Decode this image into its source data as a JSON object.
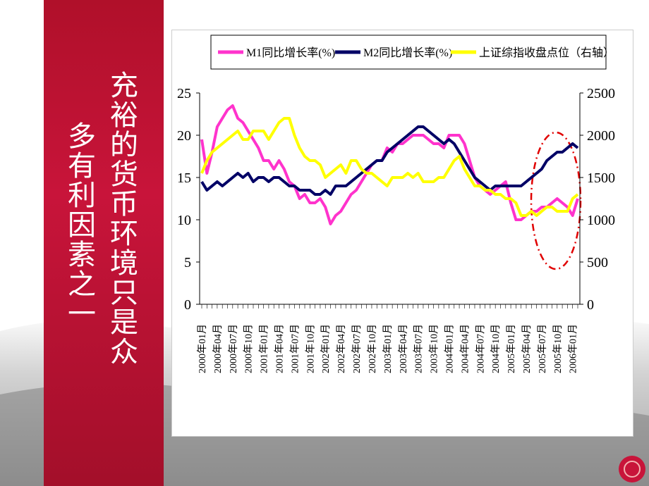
{
  "slide": {
    "heading_lines": [
      "充裕的货币环境只是众",
      "多有利因素之一"
    ]
  },
  "chart_data": {
    "type": "line",
    "categories": [
      "2000年01月",
      null,
      null,
      "2000年04月",
      null,
      null,
      "2000年07月",
      null,
      null,
      "2000年10月",
      null,
      null,
      "2001年01月",
      null,
      null,
      "2001年04月",
      null,
      null,
      "2001年07月",
      null,
      null,
      "2001年10月",
      null,
      null,
      "2002年01月",
      null,
      null,
      "2002年04月",
      null,
      null,
      "2002年07月",
      null,
      null,
      "2002年10月",
      null,
      null,
      "2003年01月",
      null,
      null,
      "2003年04月",
      null,
      null,
      "2003年07月",
      null,
      null,
      "2003年10月",
      null,
      null,
      "2004年01月",
      null,
      null,
      "2004年04月",
      null,
      null,
      "2004年07月",
      null,
      null,
      "2004年10月",
      null,
      null,
      "2005年01月",
      null,
      null,
      "2005年04月",
      null,
      null,
      "2005年07月",
      null,
      null,
      "2005年10月",
      null,
      null,
      "2006年01月",
      null
    ],
    "series": [
      {
        "name": "M1同比增长率(%)",
        "color": "#ff33cc",
        "values": [
          19.5,
          15.5,
          18,
          21,
          22,
          23,
          23.5,
          22,
          21.5,
          20.5,
          19.5,
          18.5,
          17,
          17,
          16,
          17,
          16,
          14.5,
          14,
          12.5,
          13,
          12,
          12,
          12.5,
          11.5,
          9.5,
          10.5,
          11,
          12,
          13,
          13.5,
          14.5,
          15.5,
          16.5,
          17,
          17,
          18.5,
          18,
          19,
          19,
          19.5,
          20,
          20,
          20,
          19.5,
          19,
          19,
          18.5,
          20,
          20,
          20,
          19,
          17,
          15,
          14,
          13.5,
          13,
          13.5,
          14,
          14.5,
          12,
          10,
          10,
          10.5,
          11,
          11,
          11.5,
          11.5,
          12,
          12.5,
          12,
          11.5,
          10.5,
          12.5
        ]
      },
      {
        "name": "M2同比增长率(%)",
        "color": "#000066",
        "values": [
          14.5,
          13.5,
          14,
          14.5,
          14,
          14.5,
          15,
          15.5,
          15,
          15.5,
          14.5,
          15,
          15,
          14.5,
          15,
          15,
          14.5,
          14,
          14,
          13.5,
          13.5,
          13.5,
          13,
          13,
          13.5,
          13,
          14,
          14,
          14,
          14.5,
          15,
          15.5,
          16,
          16.5,
          17,
          17,
          18,
          18.5,
          19,
          19.5,
          20,
          20.5,
          21,
          21,
          20.5,
          20,
          19.5,
          19,
          19.5,
          19,
          18,
          17,
          16,
          15,
          14.5,
          14,
          13.5,
          14,
          14,
          14,
          14,
          14,
          14,
          14.5,
          15,
          15.5,
          16,
          17,
          17.5,
          18,
          18,
          18.5,
          19,
          18.5
        ]
      },
      {
        "name": "上证综指收盘点位（右轴）",
        "color": "#ffff00",
        "axis": "y2",
        "values": [
          1550,
          1700,
          1800,
          1850,
          1900,
          1950,
          2000,
          2050,
          1950,
          1950,
          2050,
          2050,
          2050,
          1950,
          2050,
          2150,
          2200,
          2200,
          2000,
          1850,
          1750,
          1700,
          1700,
          1650,
          1500,
          1550,
          1600,
          1650,
          1550,
          1700,
          1700,
          1600,
          1550,
          1550,
          1500,
          1450,
          1400,
          1500,
          1500,
          1500,
          1550,
          1500,
          1550,
          1450,
          1450,
          1450,
          1500,
          1500,
          1600,
          1700,
          1750,
          1600,
          1500,
          1400,
          1400,
          1350,
          1350,
          1300,
          1300,
          1250,
          1250,
          1200,
          1050,
          1050,
          1100,
          1050,
          1100,
          1150,
          1150,
          1100,
          1100,
          1100,
          1250,
          1300
        ]
      }
    ],
    "ylim": [
      0,
      25
    ],
    "yticks": [
      0,
      5,
      10,
      15,
      20,
      25
    ],
    "y2lim": [
      0,
      2500
    ],
    "y2ticks": [
      0,
      500,
      1000,
      1500,
      2000,
      2500
    ]
  }
}
